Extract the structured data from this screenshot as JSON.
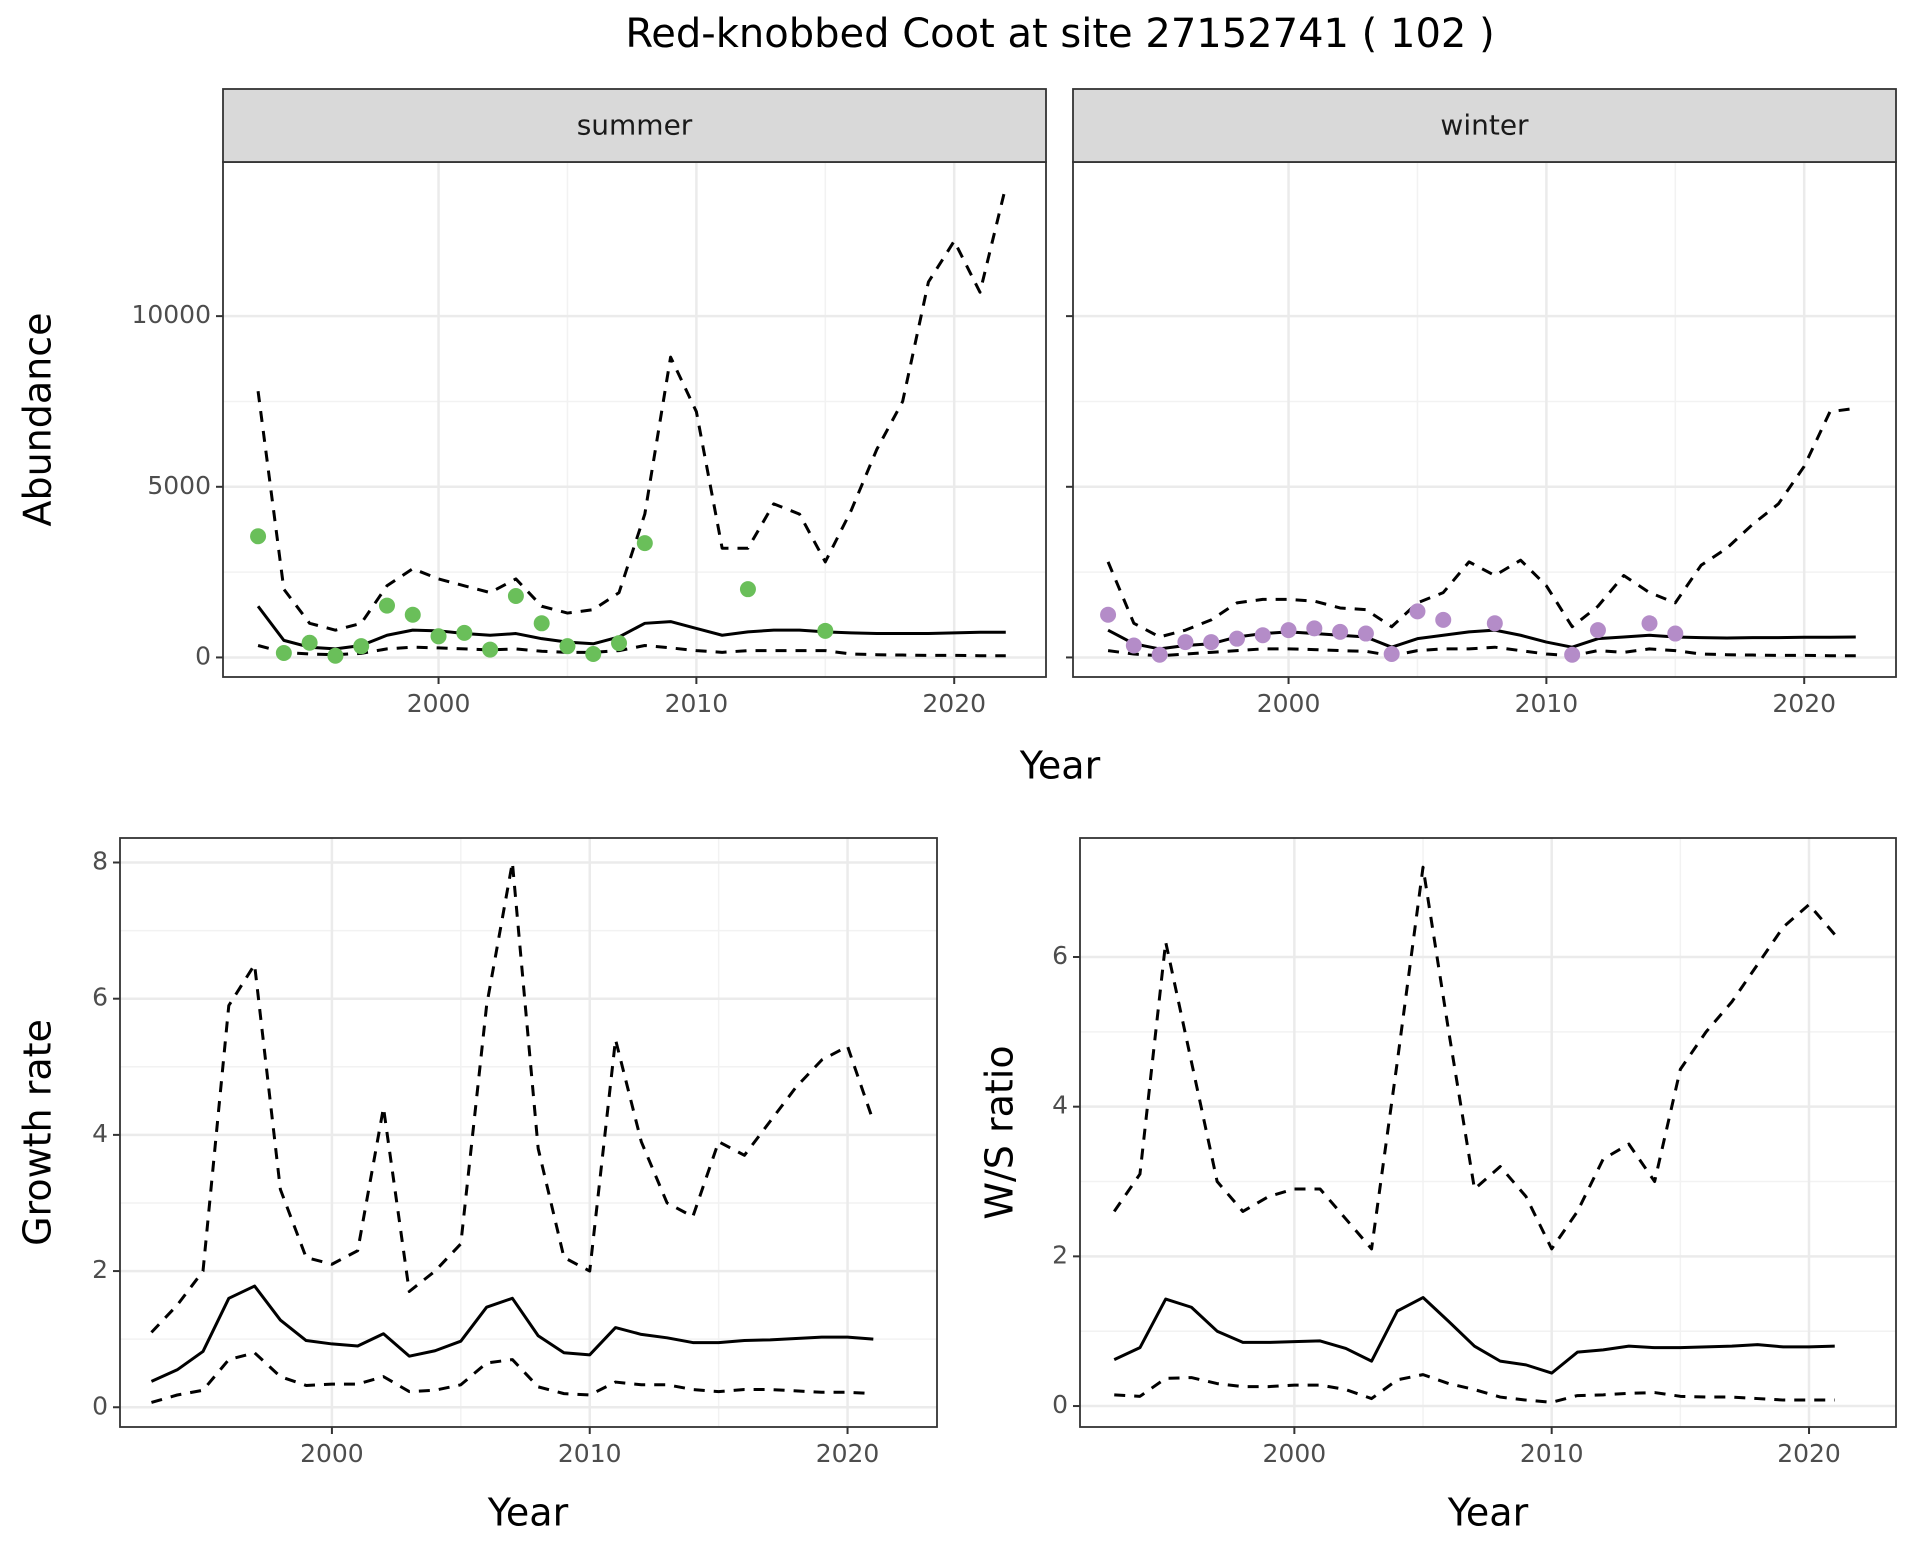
{
  "title": "Red-knobbed Coot at site 27152741 ( 102 )",
  "chart_data": [
    {
      "type": "line",
      "strip": "summer",
      "ylabel": "Abundance",
      "xlabel": "Year",
      "x": [
        1993,
        1994,
        1995,
        1996,
        1997,
        1998,
        1999,
        2000,
        2001,
        2002,
        2003,
        2004,
        2005,
        2006,
        2007,
        2008,
        2009,
        2010,
        2011,
        2012,
        2013,
        2014,
        2015,
        2016,
        2017,
        2018,
        2019,
        2020,
        2021,
        2022
      ],
      "xlim": [
        1991.64,
        2023.56
      ],
      "xticks": [
        2000,
        2010,
        2020
      ],
      "ylim": [
        -573,
        14516
      ],
      "yticks": [
        0,
        5000,
        10000
      ],
      "grid": true,
      "series": [
        {
          "style": "dashed",
          "color": "#000000",
          "values": [
            7800,
            2000,
            1000,
            800,
            1000,
            2100,
            2600,
            2300,
            2100,
            1900,
            2300,
            1500,
            1300,
            1400,
            1900,
            4200,
            8800,
            7200,
            3200,
            3200,
            4500,
            4200,
            2800,
            4300,
            6100,
            7500,
            11000,
            12200,
            10700,
            13800
          ]
        },
        {
          "style": "solid",
          "color": "#000000",
          "values": [
            1500,
            500,
            300,
            250,
            350,
            650,
            800,
            780,
            700,
            650,
            700,
            550,
            450,
            400,
            600,
            1000,
            1050,
            850,
            650,
            750,
            800,
            800,
            750,
            720,
            700,
            700,
            700,
            720,
            740,
            740
          ]
        },
        {
          "style": "dashed",
          "color": "#000000",
          "values": [
            350,
            150,
            100,
            80,
            120,
            250,
            300,
            280,
            250,
            220,
            250,
            180,
            150,
            150,
            200,
            350,
            280,
            200,
            150,
            200,
            200,
            200,
            200,
            100,
            80,
            70,
            60,
            60,
            50,
            50
          ]
        },
        {
          "style": "points",
          "color": "#6abf5a",
          "values": [
            3550,
            130,
            430,
            50,
            330,
            1520,
            1250,
            620,
            720,
            230,
            1800,
            1000,
            330,
            100,
            420,
            3350,
            null,
            null,
            null,
            2000,
            null,
            null,
            780,
            null,
            null,
            null,
            null,
            null,
            null,
            null
          ]
        }
      ]
    },
    {
      "type": "line",
      "strip": "winter",
      "x": [
        1993,
        1994,
        1995,
        1996,
        1997,
        1998,
        1999,
        2000,
        2001,
        2002,
        2003,
        2004,
        2005,
        2006,
        2007,
        2008,
        2009,
        2010,
        2011,
        2012,
        2013,
        2014,
        2015,
        2016,
        2017,
        2018,
        2019,
        2020,
        2021,
        2022
      ],
      "xlim": [
        1991.64,
        2023.56
      ],
      "xticks": [
        2000,
        2010,
        2020
      ],
      "ylim": [
        -573,
        14516
      ],
      "yticks": [
        0,
        5000,
        10000
      ],
      "grid": true,
      "series": [
        {
          "style": "dashed",
          "color": "#000000",
          "values": [
            2800,
            1000,
            600,
            800,
            1100,
            1600,
            1700,
            1700,
            1650,
            1450,
            1400,
            900,
            1600,
            1900,
            2800,
            2400,
            2850,
            2100,
            900,
            1500,
            2400,
            1900,
            1600,
            2700,
            3200,
            3900,
            4500,
            5600,
            7200,
            7300
          ]
        },
        {
          "style": "solid",
          "color": "#000000",
          "values": [
            800,
            400,
            250,
            350,
            400,
            600,
            700,
            750,
            700,
            650,
            600,
            300,
            550,
            650,
            750,
            800,
            650,
            450,
            300,
            550,
            600,
            650,
            600,
            580,
            570,
            580,
            580,
            590,
            590,
            600
          ]
        },
        {
          "style": "dashed",
          "color": "#000000",
          "values": [
            200,
            100,
            50,
            100,
            150,
            200,
            250,
            250,
            230,
            200,
            180,
            50,
            200,
            250,
            250,
            300,
            200,
            100,
            50,
            200,
            150,
            250,
            200,
            100,
            80,
            70,
            60,
            60,
            50,
            50
          ]
        },
        {
          "style": "points",
          "color": "#b48cc8",
          "values": [
            1250,
            350,
            80,
            450,
            450,
            550,
            650,
            800,
            850,
            750,
            700,
            100,
            1350,
            1100,
            null,
            1000,
            null,
            null,
            80,
            800,
            null,
            1000,
            700,
            null,
            null,
            null,
            null,
            null,
            null,
            null
          ]
        }
      ]
    },
    {
      "type": "line",
      "ylabel": "Growth rate",
      "xlabel": "Year",
      "x": [
        1993,
        1994,
        1995,
        1996,
        1997,
        1998,
        1999,
        2000,
        2001,
        2002,
        2003,
        2004,
        2005,
        2006,
        2007,
        2008,
        2009,
        2010,
        2011,
        2012,
        2013,
        2014,
        2015,
        2016,
        2017,
        2018,
        2019,
        2020,
        2021
      ],
      "xlim": [
        1991.78,
        2023.47
      ],
      "xticks": [
        2000,
        2010,
        2020
      ],
      "ylim": [
        -0.29,
        8.36
      ],
      "yticks": [
        0,
        2,
        4,
        6,
        8
      ],
      "grid": true,
      "series": [
        {
          "style": "dashed",
          "color": "#000000",
          "values": [
            1.1,
            1.5,
            2.0,
            5.9,
            6.5,
            3.2,
            2.2,
            2.1,
            2.3,
            4.4,
            1.7,
            2.0,
            2.4,
            5.9,
            8.0,
            3.8,
            2.2,
            2.0,
            5.4,
            3.9,
            3.0,
            2.8,
            3.9,
            3.7,
            4.2,
            4.7,
            5.1,
            5.3,
            4.2
          ]
        },
        {
          "style": "solid",
          "color": "#000000",
          "values": [
            0.38,
            0.55,
            0.82,
            1.6,
            1.78,
            1.28,
            0.98,
            0.93,
            0.9,
            1.08,
            0.75,
            0.83,
            0.97,
            1.47,
            1.6,
            1.05,
            0.8,
            0.77,
            1.17,
            1.07,
            1.02,
            0.95,
            0.95,
            0.98,
            0.99,
            1.01,
            1.03,
            1.03,
            1.0
          ]
        },
        {
          "style": "dashed",
          "color": "#000000",
          "values": [
            0.07,
            0.18,
            0.25,
            0.7,
            0.8,
            0.45,
            0.32,
            0.34,
            0.34,
            0.45,
            0.23,
            0.25,
            0.33,
            0.65,
            0.7,
            0.3,
            0.2,
            0.18,
            0.37,
            0.33,
            0.33,
            0.26,
            0.23,
            0.26,
            0.26,
            0.24,
            0.22,
            0.22,
            0.2
          ]
        }
      ]
    },
    {
      "type": "line",
      "ylabel": "W/S ratio",
      "xlabel": "Year",
      "x": [
        1993,
        1994,
        1995,
        1996,
        1997,
        1998,
        1999,
        2000,
        2001,
        2002,
        2003,
        2004,
        2005,
        2006,
        2007,
        2008,
        2009,
        2010,
        2011,
        2012,
        2013,
        2014,
        2015,
        2016,
        2017,
        2018,
        2019,
        2020,
        2021
      ],
      "xlim": [
        1991.67,
        2023.38
      ],
      "xticks": [
        2000,
        2010,
        2020
      ],
      "ylim": [
        -0.28,
        7.59
      ],
      "yticks": [
        0,
        2,
        4,
        6
      ],
      "grid": true,
      "series": [
        {
          "style": "dashed",
          "color": "#000000",
          "values": [
            2.6,
            3.1,
            6.2,
            4.6,
            3.0,
            2.6,
            2.8,
            2.9,
            2.9,
            2.5,
            2.1,
            4.6,
            7.2,
            5.0,
            2.9,
            3.2,
            2.8,
            2.1,
            2.6,
            3.3,
            3.5,
            3.0,
            4.5,
            5.0,
            5.4,
            5.9,
            6.4,
            6.7,
            6.3
          ]
        },
        {
          "style": "solid",
          "color": "#000000",
          "values": [
            0.62,
            0.78,
            1.43,
            1.32,
            1.0,
            0.85,
            0.85,
            0.86,
            0.87,
            0.77,
            0.6,
            1.27,
            1.45,
            1.13,
            0.8,
            0.6,
            0.55,
            0.44,
            0.72,
            0.75,
            0.8,
            0.78,
            0.78,
            0.79,
            0.8,
            0.82,
            0.79,
            0.79,
            0.8
          ]
        },
        {
          "style": "dashed",
          "color": "#000000",
          "values": [
            0.15,
            0.13,
            0.37,
            0.38,
            0.3,
            0.26,
            0.26,
            0.28,
            0.28,
            0.22,
            0.1,
            0.35,
            0.42,
            0.3,
            0.22,
            0.12,
            0.08,
            0.05,
            0.14,
            0.15,
            0.17,
            0.18,
            0.13,
            0.12,
            0.12,
            0.1,
            0.08,
            0.08,
            0.08
          ]
        }
      ]
    }
  ]
}
